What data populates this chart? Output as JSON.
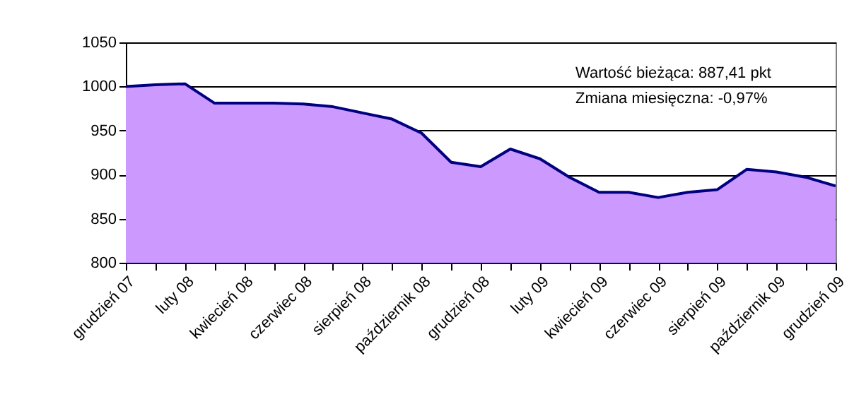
{
  "chart_data": {
    "type": "area",
    "categories": [
      "grudzień 07",
      null,
      "luty 08",
      null,
      "kwiecień 08",
      null,
      "czerwiec 08",
      null,
      "sierpień 08",
      null,
      "październik 08",
      null,
      "grudzień 08",
      null,
      "luty 09",
      null,
      "kwiecień 09",
      null,
      "czerwiec 09",
      null,
      "sierpień 09",
      null,
      "październik 09",
      null,
      "grudzień 09"
    ],
    "series": [
      {
        "color": "#cc99ff",
        "values": [
          1000,
          1002,
          1003,
          981,
          981,
          981,
          980,
          977,
          970,
          963,
          947,
          914,
          909,
          929,
          918,
          897,
          880,
          880,
          874,
          880,
          883,
          906,
          903,
          897,
          887
        ]
      }
    ],
    "ylim": [
      800,
      1050
    ],
    "yticks": [
      800,
      850,
      900,
      950,
      1000,
      1050
    ],
    "grid": "y",
    "annotations": [
      "Wartość bieżąca: 887,41 pkt",
      "Zmiana miesięczna: -0,97%"
    ]
  }
}
